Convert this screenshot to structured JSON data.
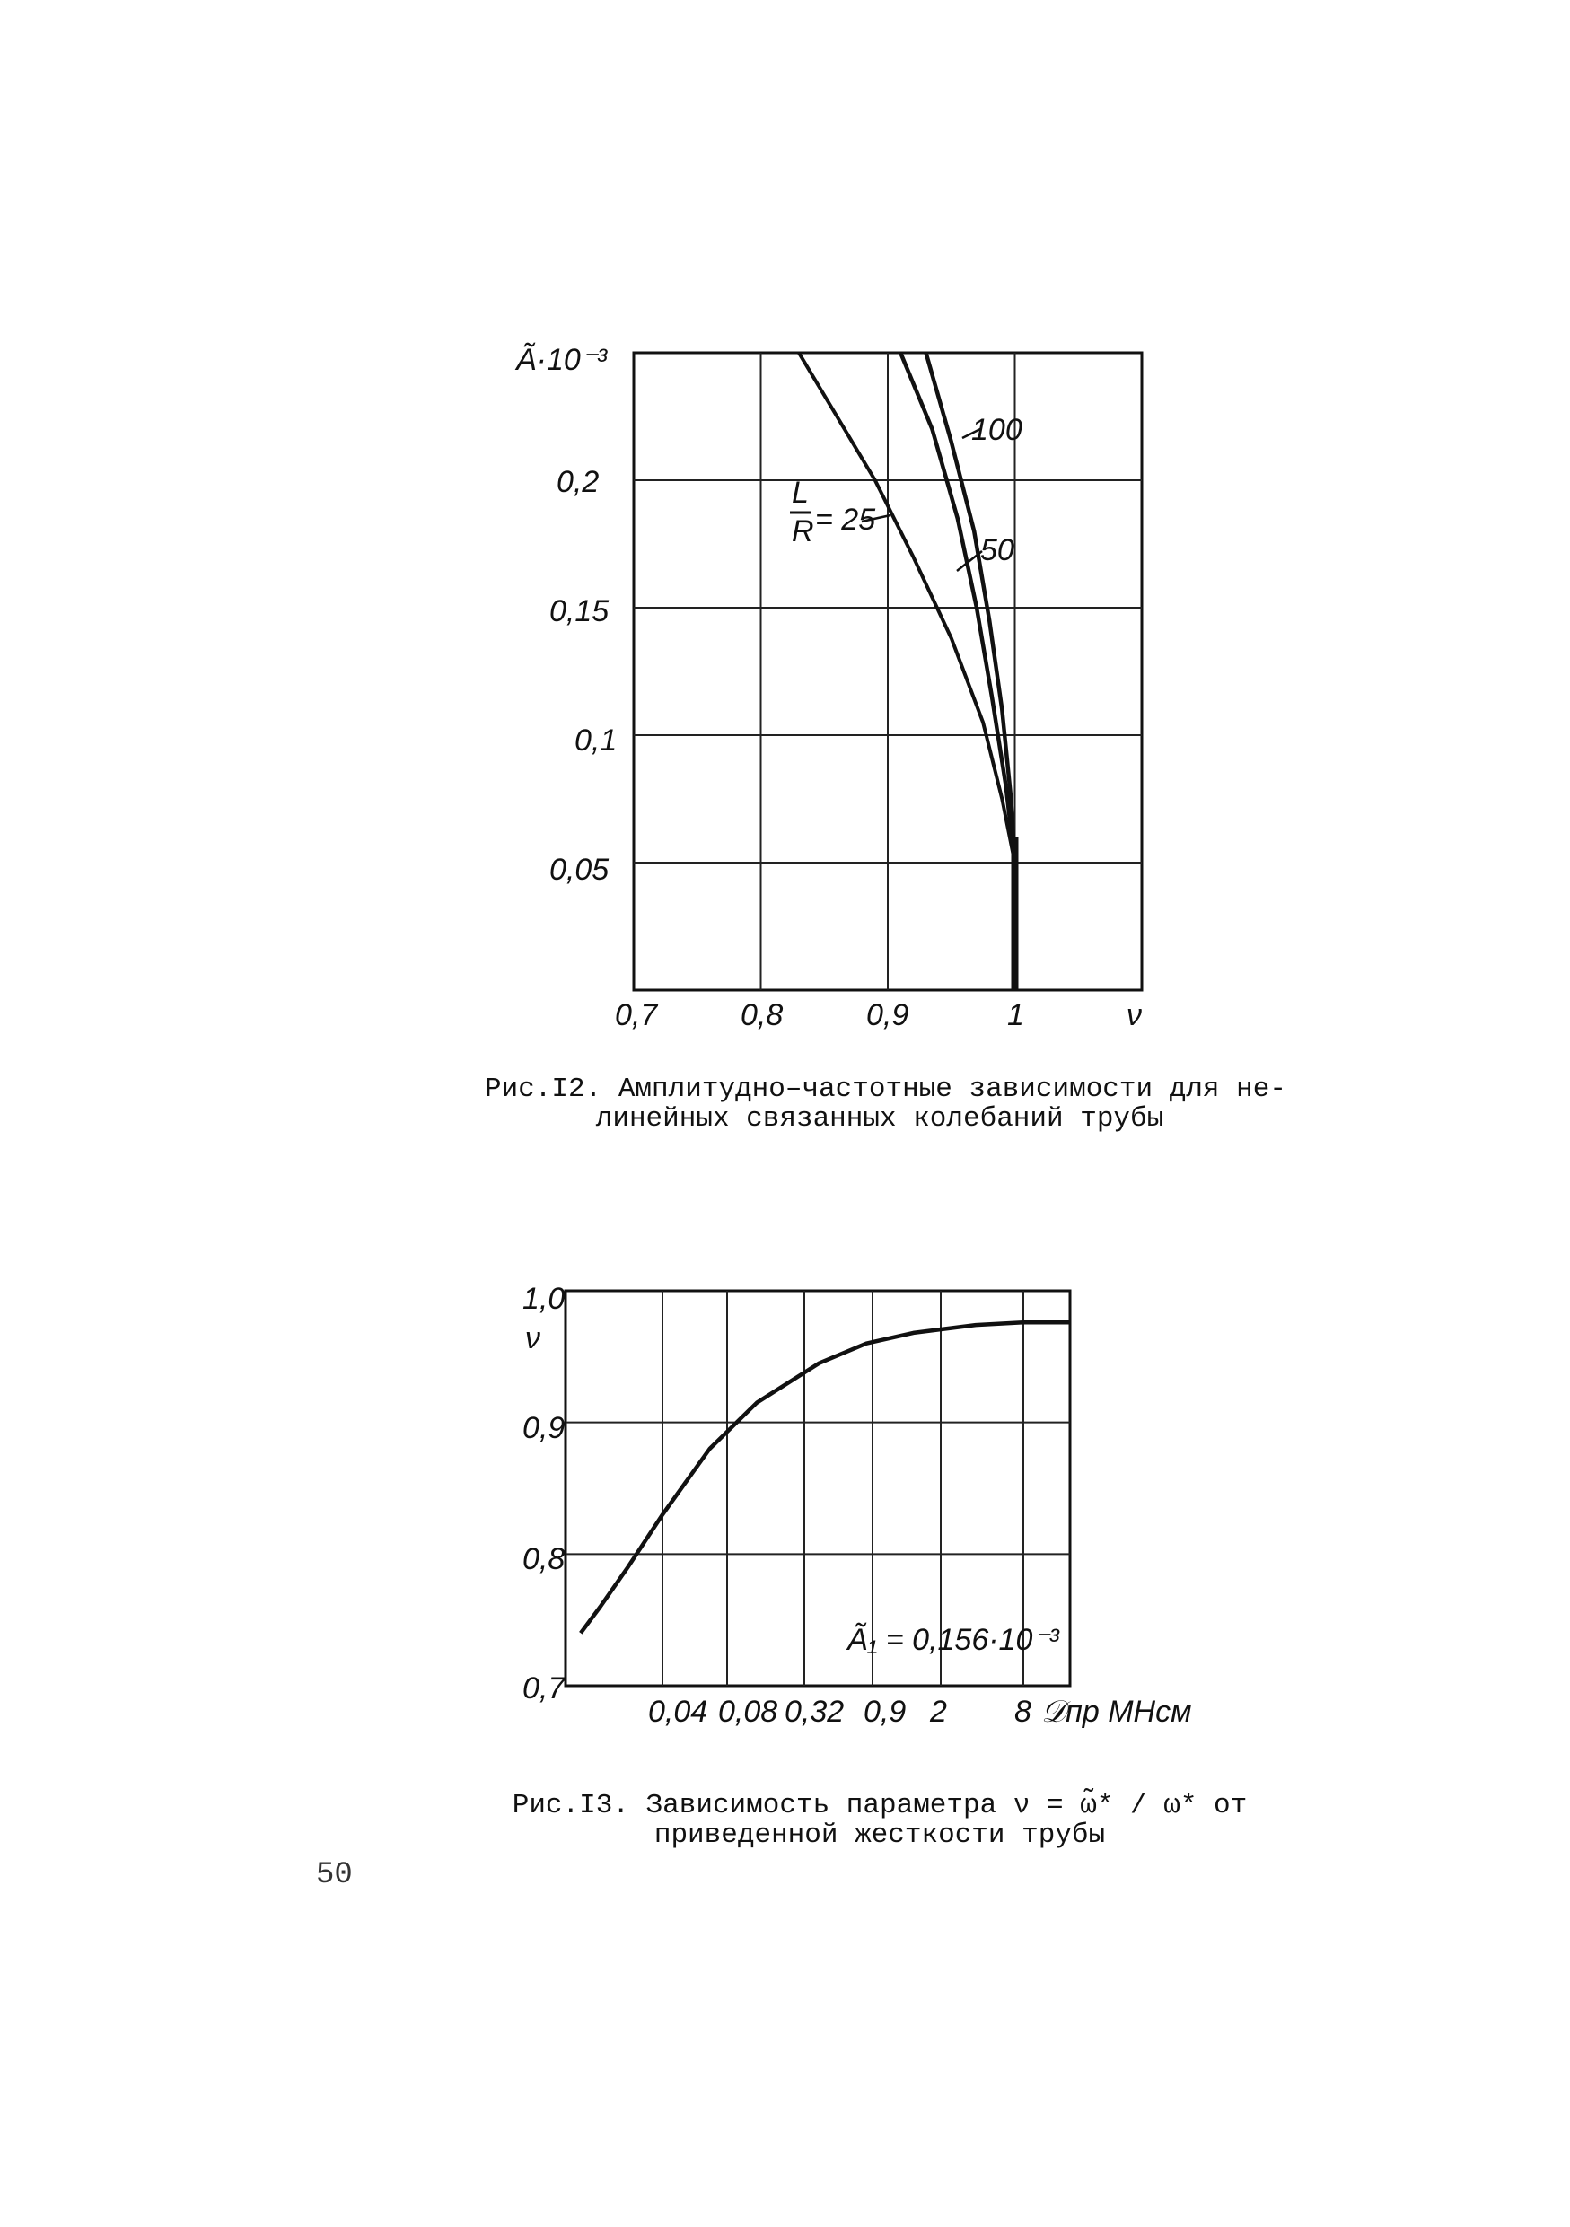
{
  "page_number": "50",
  "chart_data": [
    {
      "type": "line",
      "ylabel": "Ã·10⁻³",
      "xlabel": "ν",
      "x_ticks": [
        "0,7",
        "0,8",
        "0,9",
        "1"
      ],
      "y_ticks": [
        "0,05",
        "0,1",
        "0,15",
        "0,2"
      ],
      "xlim": [
        0.7,
        1.1
      ],
      "ylim": [
        0,
        0.25
      ],
      "grid": true,
      "series": [
        {
          "name": "L/R = 25",
          "x": [
            0.83,
            0.86,
            0.89,
            0.92,
            0.95,
            0.975,
            0.99,
            1.0,
            1.0
          ],
          "y": [
            0.25,
            0.225,
            0.2,
            0.17,
            0.138,
            0.105,
            0.075,
            0.05,
            0.0
          ]
        },
        {
          "name": "50",
          "x": [
            0.91,
            0.935,
            0.955,
            0.97,
            0.982,
            0.993,
            1.0,
            1.0
          ],
          "y": [
            0.25,
            0.22,
            0.185,
            0.15,
            0.115,
            0.08,
            0.05,
            0.0
          ]
        },
        {
          "name": "100",
          "x": [
            0.93,
            0.95,
            0.968,
            0.98,
            0.99,
            0.997,
            1.0,
            1.0
          ],
          "y": [
            0.25,
            0.215,
            0.18,
            0.145,
            0.11,
            0.075,
            0.05,
            0.0
          ]
        }
      ],
      "labels": {
        "lr_num": "L",
        "lr_den": "R",
        "lr_val": "= 25",
        "l50": "50",
        "l100": "100"
      },
      "caption": [
        "Рис.I2. Амплитудно–частотные зависимости для не-",
        "линейных связанных колебаний трубы"
      ]
    },
    {
      "type": "line",
      "ylabel": "ν",
      "xlabel": "𝒟пр МНсм",
      "x_ticks": [
        "0,04",
        "0,08",
        "0,32",
        "0,9",
        "2",
        "8"
      ],
      "y_ticks": [
        "0,7",
        "0,8",
        "0,9",
        "1,0"
      ],
      "ylim": [
        0.7,
        1.0
      ],
      "grid": true,
      "series": [
        {
          "name": "",
          "x": [
            0.015,
            0.02,
            0.03,
            0.05,
            0.1,
            0.2,
            0.5,
            1,
            2,
            5,
            10,
            20
          ],
          "y": [
            0.74,
            0.76,
            0.79,
            0.83,
            0.88,
            0.915,
            0.945,
            0.96,
            0.968,
            0.974,
            0.976,
            0.976
          ]
        }
      ],
      "annotation": "Ã₁ = 0,156·10⁻³",
      "caption": [
        "Рис.I3. Зависимость параметра ν = ω̃* / ω* от",
        "приведенной жесткости трубы"
      ]
    }
  ]
}
